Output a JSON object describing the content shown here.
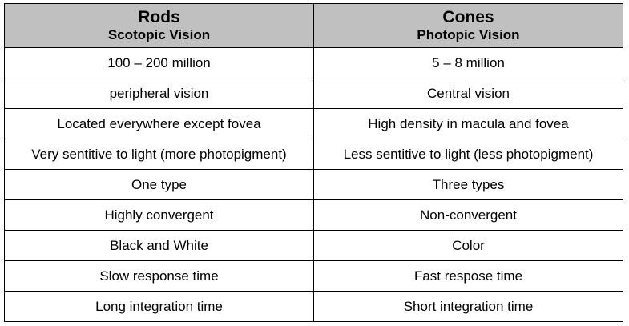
{
  "table": {
    "headers": [
      {
        "title": "Rods",
        "subtitle": "Scotopic Vision"
      },
      {
        "title": "Cones",
        "subtitle": "Photopic Vision"
      }
    ],
    "rows": [
      [
        "100 – 200 million",
        "5 – 8 million"
      ],
      [
        "peripheral vision",
        "Central vision"
      ],
      [
        "Located everywhere except fovea",
        "High density in macula and fovea"
      ],
      [
        "Very sentitive to light (more photopigment)",
        "Less sentitive to light (less photopigment)"
      ],
      [
        "One type",
        "Three types"
      ],
      [
        "Highly convergent",
        "Non-convergent"
      ],
      [
        "Black and White",
        "Color"
      ],
      [
        "Slow response time",
        "Fast respose time"
      ],
      [
        "Long integration time",
        "Short integration time"
      ]
    ],
    "colors": {
      "header_background": "#c0c0c0",
      "border": "#000000"
    }
  }
}
